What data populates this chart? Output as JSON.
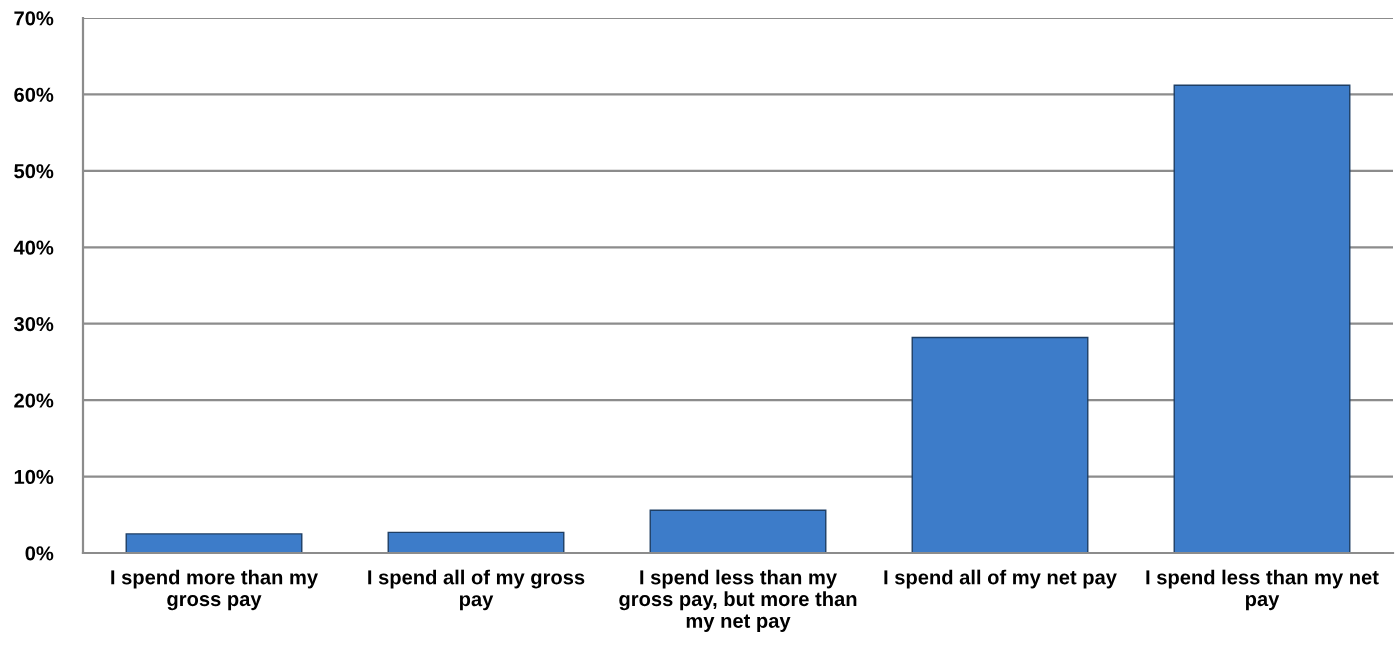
{
  "chart_data": {
    "type": "bar",
    "categories": [
      "I spend more than my gross pay",
      "I spend all of my gross pay",
      "I spend less than my gross pay, but more than my net pay",
      "I spend all of my net pay",
      "I spend less than my net pay"
    ],
    "values": [
      2.5,
      2.7,
      5.6,
      28.2,
      61.2
    ],
    "color": "#3d7cc9",
    "ylim": [
      0,
      70
    ],
    "yticks": [
      {
        "value": 0,
        "label": "0%"
      },
      {
        "value": 10,
        "label": "10%"
      },
      {
        "value": 20,
        "label": "20%"
      },
      {
        "value": 30,
        "label": "30%"
      },
      {
        "value": 40,
        "label": "40%"
      },
      {
        "value": 50,
        "label": "50%"
      },
      {
        "value": 60,
        "label": "60%"
      },
      {
        "value": 70,
        "label": "70%"
      }
    ],
    "grid": "y"
  }
}
